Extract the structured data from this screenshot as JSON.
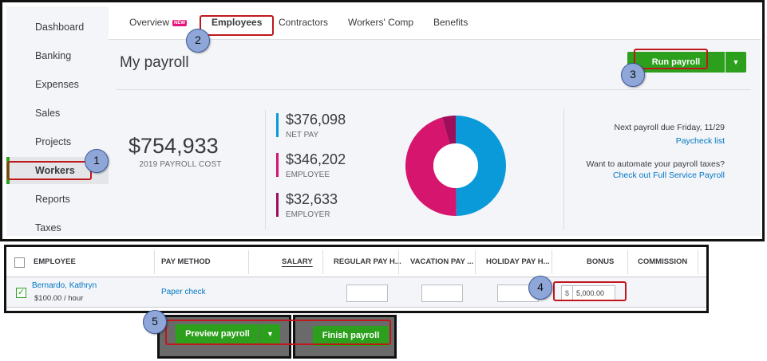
{
  "sidebar": {
    "items": [
      {
        "label": "Dashboard"
      },
      {
        "label": "Banking"
      },
      {
        "label": "Expenses"
      },
      {
        "label": "Sales"
      },
      {
        "label": "Projects"
      },
      {
        "label": "Workers"
      },
      {
        "label": "Reports"
      },
      {
        "label": "Taxes"
      }
    ],
    "active": "Workers"
  },
  "tabs": {
    "items": [
      {
        "label": "Overview",
        "badge": "NEW"
      },
      {
        "label": "Employees"
      },
      {
        "label": "Contractors"
      },
      {
        "label": "Workers' Comp"
      },
      {
        "label": "Benefits"
      }
    ],
    "active": "Employees"
  },
  "page": {
    "title": "My payroll",
    "run_payroll_label": "Run payroll",
    "dropdown_icon": "caret-down-icon"
  },
  "summary": {
    "total_value": "$754,933",
    "total_label": "2019 PAYROLL COST",
    "stats": [
      {
        "value": "$376,098",
        "label": "NET PAY",
        "color": "#0a9ad9"
      },
      {
        "value": "$346,202",
        "label": "EMPLOYEE",
        "color": "#d6166e"
      },
      {
        "value": "$32,633",
        "label": "EMPLOYER",
        "color": "#9e0e5a"
      }
    ],
    "next_payroll": "Next payroll due Friday, 11/29",
    "paycheck_link": "Paycheck list",
    "automate_text": "Want to automate your payroll taxes?",
    "full_service_link": "Check out Full Service Payroll"
  },
  "table": {
    "headers": {
      "employee": "EMPLOYEE",
      "pay_method": "PAY METHOD",
      "salary": "SALARY",
      "regular": "REGULAR PAY H...",
      "vacation": "VACATION PAY ...",
      "holiday": "HOLIDAY PAY H...",
      "bonus": "BONUS",
      "commission": "COMMISSION"
    },
    "row": {
      "name": "Bernardo, Kathryn",
      "rate": "$100.00 / hour",
      "pay_method": "Paper check",
      "bonus_currency": "$",
      "bonus_value": "5,000.00",
      "checked": true
    }
  },
  "buttons": {
    "preview_label": "Preview payroll",
    "finish_label": "Finish payroll"
  },
  "annotations": {
    "steps": [
      "1",
      "2",
      "3",
      "4",
      "5"
    ],
    "highlight_color": "#c0171c"
  }
}
